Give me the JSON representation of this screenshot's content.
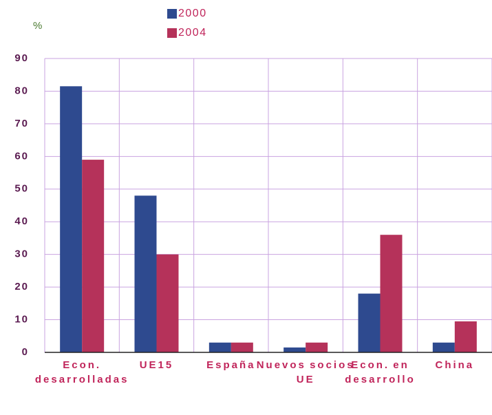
{
  "chart_data": {
    "type": "bar",
    "y_label": "%",
    "categories": [
      "Econ. desarrolladas",
      "UE15",
      "España",
      "Nuevos socios UE",
      "Econ. en desarrollo",
      "China"
    ],
    "series": [
      {
        "name": "2000",
        "color": "#2e4a8f",
        "values": [
          81.5,
          48,
          3,
          1.5,
          18,
          3
        ]
      },
      {
        "name": "2004",
        "color": "#b5325a",
        "values": [
          59,
          30,
          3,
          3,
          36,
          9.5
        ]
      }
    ],
    "ylim": [
      0,
      90
    ],
    "yticks": [
      0,
      10,
      20,
      30,
      40,
      50,
      60,
      70,
      80,
      90
    ],
    "grid": true
  }
}
